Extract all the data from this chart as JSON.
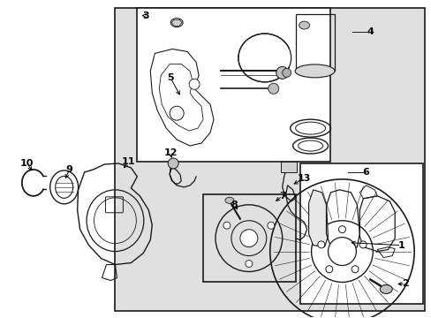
{
  "bg_color": "#ffffff",
  "line_color": "#1a1a1a",
  "gray_bg": "#e0e0e0",
  "figsize": [
    4.89,
    3.6
  ],
  "dpi": 100
}
